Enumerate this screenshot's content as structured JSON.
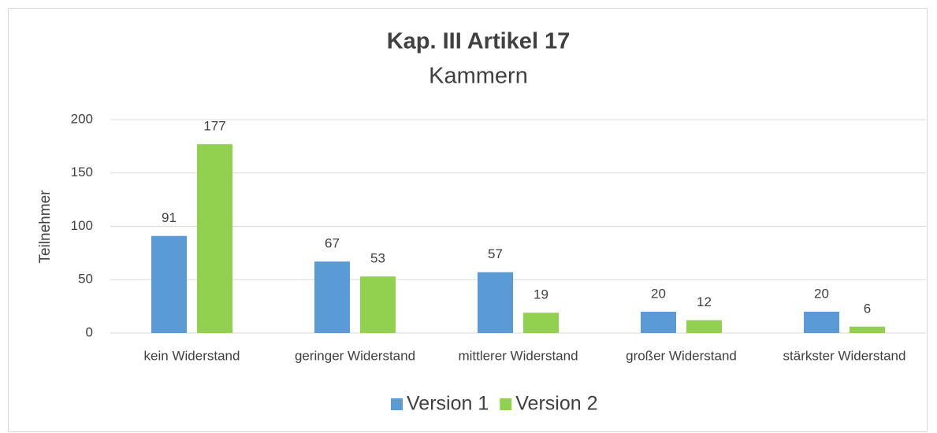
{
  "chart_data": {
    "type": "bar",
    "title": "Kap. III Artikel 17",
    "subtitle": "Kammern",
    "ylabel": "Teilnehmer",
    "categories": [
      "kein Widerstand",
      "geringer Widerstand",
      "mittlerer Widerstand",
      "großer Widerstand",
      "stärkster Widerstand"
    ],
    "series": [
      {
        "name": "Version 1",
        "color": "#5b9bd5",
        "values": [
          91,
          67,
          57,
          20,
          20
        ]
      },
      {
        "name": "Version 2",
        "color": "#92d050",
        "values": [
          177,
          53,
          19,
          12,
          6
        ]
      }
    ],
    "ylim": [
      0,
      200
    ],
    "yticks": [
      0,
      50,
      100,
      150,
      200
    ],
    "grid": true,
    "legend": "bottom"
  }
}
